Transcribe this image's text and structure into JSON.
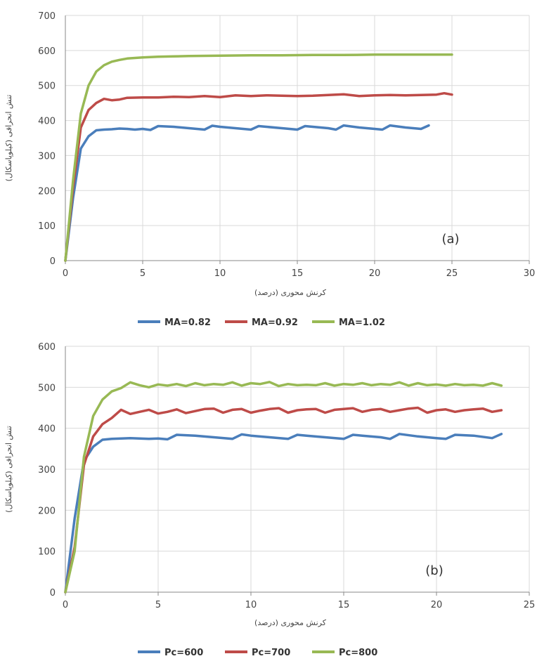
{
  "chart_data": [
    {
      "type": "line",
      "panel_label": "(a)",
      "xlabel": "کرنش محوری (درصد)",
      "ylabel": "تنش انحرافی (کیلوپاسکال)",
      "xlim": [
        0,
        30
      ],
      "ylim": [
        0,
        700
      ],
      "xticks": [
        "0",
        "5",
        "10",
        "15",
        "20",
        "25",
        "30"
      ],
      "yticks": [
        "0",
        "100",
        "200",
        "300",
        "400",
        "500",
        "600",
        "700"
      ],
      "grid": true,
      "legend_position": "bottom",
      "series": [
        {
          "name": "MA=0.82",
          "color": "#4a7ebb",
          "x": [
            0,
            0.5,
            1,
            1.5,
            2,
            2.5,
            3,
            3.5,
            4,
            4.5,
            5,
            5.5,
            6,
            7,
            8,
            9,
            9.5,
            10,
            11,
            12,
            12.5,
            13,
            14,
            15,
            15.5,
            16,
            17,
            17.5,
            18,
            19,
            20,
            20.5,
            21,
            22,
            23,
            23.5
          ],
          "values": [
            0,
            180,
            320,
            355,
            372,
            374,
            375,
            377,
            376,
            374,
            376,
            373,
            384,
            382,
            378,
            374,
            385,
            382,
            378,
            374,
            384,
            382,
            378,
            374,
            384,
            382,
            378,
            374,
            386,
            380,
            376,
            374,
            386,
            380,
            376,
            386
          ]
        },
        {
          "name": "MA=0.92",
          "color": "#be4b48",
          "x": [
            0,
            0.5,
            1,
            1.5,
            2,
            2.5,
            3,
            3.5,
            4,
            5,
            6,
            7,
            8,
            9,
            10,
            11,
            12,
            13,
            14,
            15,
            16,
            17,
            18,
            19,
            20,
            21,
            22,
            23,
            24,
            24.5,
            25
          ],
          "values": [
            0,
            210,
            380,
            430,
            450,
            462,
            458,
            460,
            465,
            466,
            466,
            468,
            467,
            470,
            467,
            472,
            470,
            472,
            471,
            470,
            471,
            473,
            475,
            470,
            472,
            473,
            472,
            473,
            474,
            478,
            474
          ]
        },
        {
          "name": "MA=1.02",
          "color": "#98b954",
          "x": [
            0,
            0.5,
            1,
            1.5,
            2,
            2.5,
            3,
            3.5,
            4,
            5,
            6,
            7,
            8,
            10,
            12,
            14,
            16,
            18,
            20,
            22,
            24,
            25
          ],
          "values": [
            0,
            230,
            420,
            500,
            540,
            558,
            568,
            573,
            577,
            580,
            582,
            583,
            584,
            585,
            586,
            586,
            587,
            587,
            588,
            588,
            588,
            588
          ]
        }
      ]
    },
    {
      "type": "line",
      "panel_label": "(b)",
      "xlabel": "کرنش محوری (درصد)",
      "ylabel": "تنش انحرافی (کیلوپاسکال)",
      "xlim": [
        0,
        25
      ],
      "ylim": [
        0,
        600
      ],
      "xticks": [
        "0",
        "5",
        "10",
        "15",
        "20",
        "25"
      ],
      "yticks": [
        "0",
        "100",
        "200",
        "300",
        "400",
        "500",
        "600"
      ],
      "grid": true,
      "legend_position": "bottom",
      "series": [
        {
          "name": "Pc=600",
          "color": "#4a7ebb",
          "x": [
            0,
            0.5,
            1,
            1.5,
            2,
            2.5,
            3,
            3.5,
            4,
            4.5,
            5,
            5.5,
            6,
            7,
            8,
            9,
            9.5,
            10,
            11,
            12,
            12.5,
            13,
            14,
            15,
            15.5,
            16,
            17,
            17.5,
            18,
            19,
            20,
            20.5,
            21,
            22,
            23,
            23.5
          ],
          "values": [
            0,
            180,
            320,
            355,
            372,
            374,
            375,
            376,
            375,
            374,
            375,
            373,
            384,
            382,
            378,
            374,
            385,
            382,
            378,
            374,
            384,
            382,
            378,
            374,
            384,
            382,
            378,
            374,
            386,
            380,
            376,
            374,
            384,
            382,
            376,
            386
          ]
        },
        {
          "name": "Pc=700",
          "color": "#be4b48",
          "x": [
            0,
            0.5,
            1,
            1.5,
            2,
            2.5,
            3,
            3.5,
            4,
            4.5,
            5,
            5.5,
            6,
            6.5,
            7,
            7.5,
            8,
            8.5,
            9,
            9.5,
            10,
            10.5,
            11,
            11.5,
            12,
            12.5,
            13,
            13.5,
            14,
            14.5,
            15,
            15.5,
            16,
            16.5,
            17,
            17.5,
            18,
            18.5,
            19,
            19.5,
            20,
            20.5,
            21,
            21.5,
            22,
            22.5,
            23,
            23.5
          ],
          "values": [
            0,
            110,
            310,
            380,
            410,
            425,
            445,
            435,
            440,
            445,
            436,
            440,
            446,
            437,
            442,
            447,
            448,
            438,
            445,
            447,
            438,
            443,
            447,
            449,
            438,
            444,
            446,
            447,
            438,
            445,
            447,
            449,
            440,
            445,
            447,
            440,
            444,
            448,
            450,
            438,
            444,
            446,
            440,
            444,
            446,
            448,
            440,
            444
          ]
        },
        {
          "name": "Pc=800",
          "color": "#98b954",
          "x": [
            0,
            0.5,
            1,
            1.5,
            2,
            2.5,
            3,
            3.5,
            4,
            4.5,
            5,
            5.5,
            6,
            6.5,
            7,
            7.5,
            8,
            8.5,
            9,
            9.5,
            10,
            10.5,
            11,
            11.5,
            12,
            12.5,
            13,
            13.5,
            14,
            14.5,
            15,
            15.5,
            16,
            16.5,
            17,
            17.5,
            18,
            18.5,
            19,
            19.5,
            20,
            20.5,
            21,
            21.5,
            22,
            22.5,
            23,
            23.5
          ],
          "values": [
            0,
            100,
            330,
            430,
            470,
            490,
            498,
            512,
            505,
            500,
            507,
            504,
            508,
            503,
            510,
            505,
            508,
            506,
            512,
            504,
            510,
            508,
            513,
            503,
            508,
            505,
            506,
            505,
            510,
            504,
            508,
            506,
            510,
            505,
            508,
            506,
            512,
            504,
            510,
            505,
            507,
            504,
            508,
            505,
            506,
            504,
            510,
            504
          ]
        }
      ]
    }
  ]
}
